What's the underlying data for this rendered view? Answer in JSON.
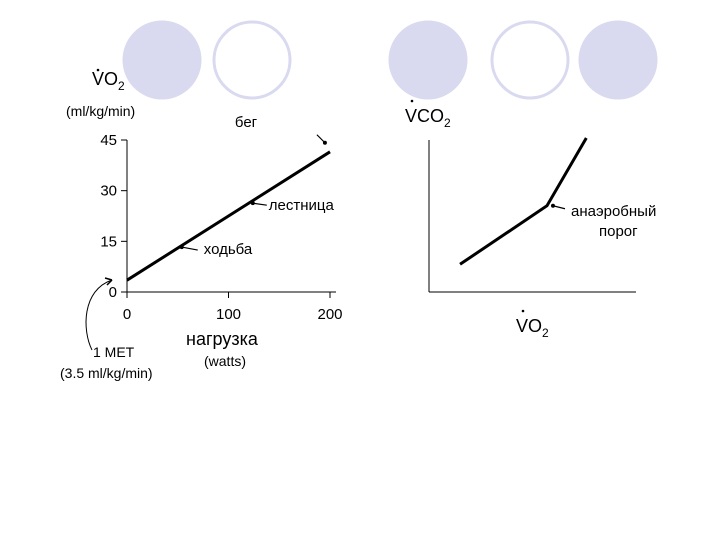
{
  "theme": {
    "circle_fill": "#d9d9f0",
    "circle_stroke": "#d9d9f0",
    "circle_outline": "#d9d9f0",
    "ink": "#000000"
  },
  "decor": {
    "circles": [
      "filled",
      "outlined",
      "filled",
      "outlined",
      "filled"
    ]
  },
  "chart_data": [
    {
      "type": "line",
      "ylabel": "VO2",
      "ylabel_sub": "2",
      "ylabel_base": "VO",
      "yunit": "(ml/kg/min)",
      "xlabel": "нагрузка",
      "xunit": "(watts)",
      "xlim": [
        0,
        200
      ],
      "ylim": [
        0,
        45
      ],
      "xticks": [
        "0",
        "100",
        "200"
      ],
      "yticks": [
        "0",
        "15",
        "30",
        "45"
      ],
      "xtick_values": [
        0,
        100,
        200
      ],
      "ytick_values": [
        0,
        15,
        30,
        45
      ],
      "series": [
        {
          "x": [
            0,
            200
          ],
          "y": [
            3.5,
            41.5
          ]
        }
      ],
      "annotations": [
        {
          "text": "бег",
          "x": 195,
          "y": 43
        },
        {
          "text": "лестница",
          "x": 120,
          "y": 26
        },
        {
          "text": "ходьба",
          "x": 50,
          "y": 13
        }
      ],
      "baseline_note": {
        "line1": "1 MET",
        "line2": "(3.5 ml/kg/min)"
      }
    },
    {
      "type": "line",
      "ylabel": "VCO2",
      "ylabel_base": "VCO",
      "ylabel_sub": "2",
      "xlabel": "VO2",
      "xlabel_base": "VO",
      "xlabel_sub": "2",
      "series": [
        {
          "x": [
            0.15,
            0.57,
            0.76
          ],
          "y": [
            0.18,
            0.56,
            1.0
          ]
        }
      ],
      "annotations": [
        {
          "line1": "анаэробный",
          "line2": "порог",
          "x": 0.57,
          "y": 0.56
        }
      ]
    }
  ]
}
